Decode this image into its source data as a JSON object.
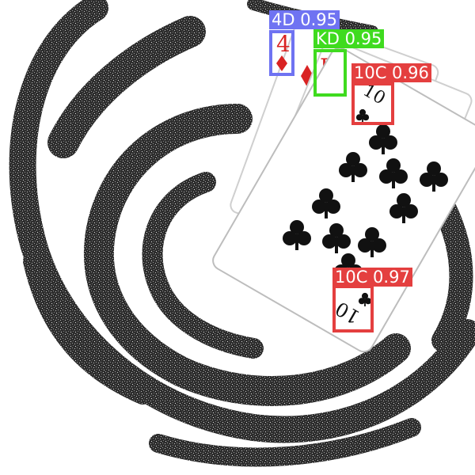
{
  "detections": [
    {
      "text": "4D 0.95",
      "color": "#6f73f2"
    },
    {
      "text": "KD 0.95",
      "color": "#3fdb1f"
    },
    {
      "text": "10C 0.96",
      "color": "#e43f3f"
    },
    {
      "text": "10C 0.97",
      "color": "#e43f3f"
    }
  ],
  "cards": {
    "four_diamonds": {
      "rank": "4",
      "suit_color": "#d92323"
    },
    "king_diamonds": {
      "rank": "K",
      "suit_color": "#d92323"
    },
    "ten_clubs_top": {
      "rank": "10"
    },
    "ten_clubs_bottom": {
      "rank": "10"
    }
  },
  "colors": {
    "noise_dark": "#2b2b2b",
    "noise_light": "#8a8a8a",
    "card_face": "#ffffff",
    "club": "#111111"
  }
}
